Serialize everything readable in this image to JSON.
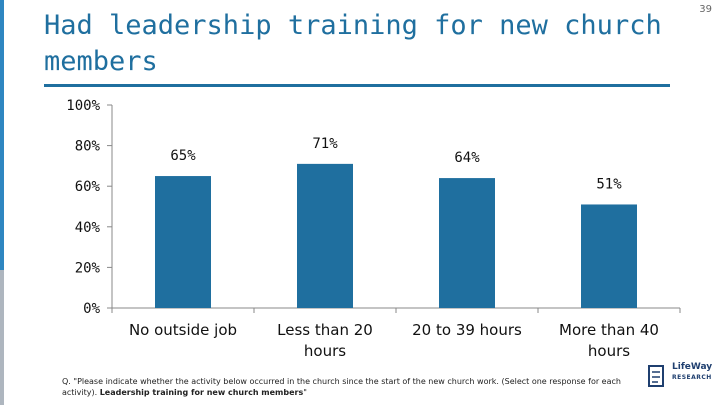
{
  "slide_number": "39",
  "title": "Had leadership training for new church members",
  "footnote": {
    "question": "Q. \"Please indicate whether the activity below occurred in the church since the start of the new church work. (Select one response for each activity).",
    "item": "Leadership training for new church members",
    "close": "\""
  },
  "logo": {
    "line1": "LifeWay",
    "line2": "RESEARCH"
  },
  "colors": {
    "bar": "#1f6f9f",
    "title": "#1f6f9f",
    "accent": "#2e86c1"
  },
  "chart_data": {
    "type": "bar",
    "categories": [
      "No outside job",
      "Less than 20 hours",
      "20 to 39 hours",
      "More than 40 hours"
    ],
    "category_lines": [
      [
        "No outside job"
      ],
      [
        "Less than 20",
        "hours"
      ],
      [
        "20 to 39 hours"
      ],
      [
        "More than 40",
        "hours"
      ]
    ],
    "values": [
      65,
      71,
      64,
      51
    ],
    "data_labels": [
      "65%",
      "71%",
      "64%",
      "51%"
    ],
    "ylim": [
      0,
      100
    ],
    "yticks": [
      0,
      20,
      40,
      60,
      80,
      100
    ],
    "ytick_labels": [
      "0%",
      "20%",
      "40%",
      "60%",
      "80%",
      "100%"
    ],
    "grid": false,
    "title": "",
    "xlabel": "",
    "ylabel": ""
  }
}
